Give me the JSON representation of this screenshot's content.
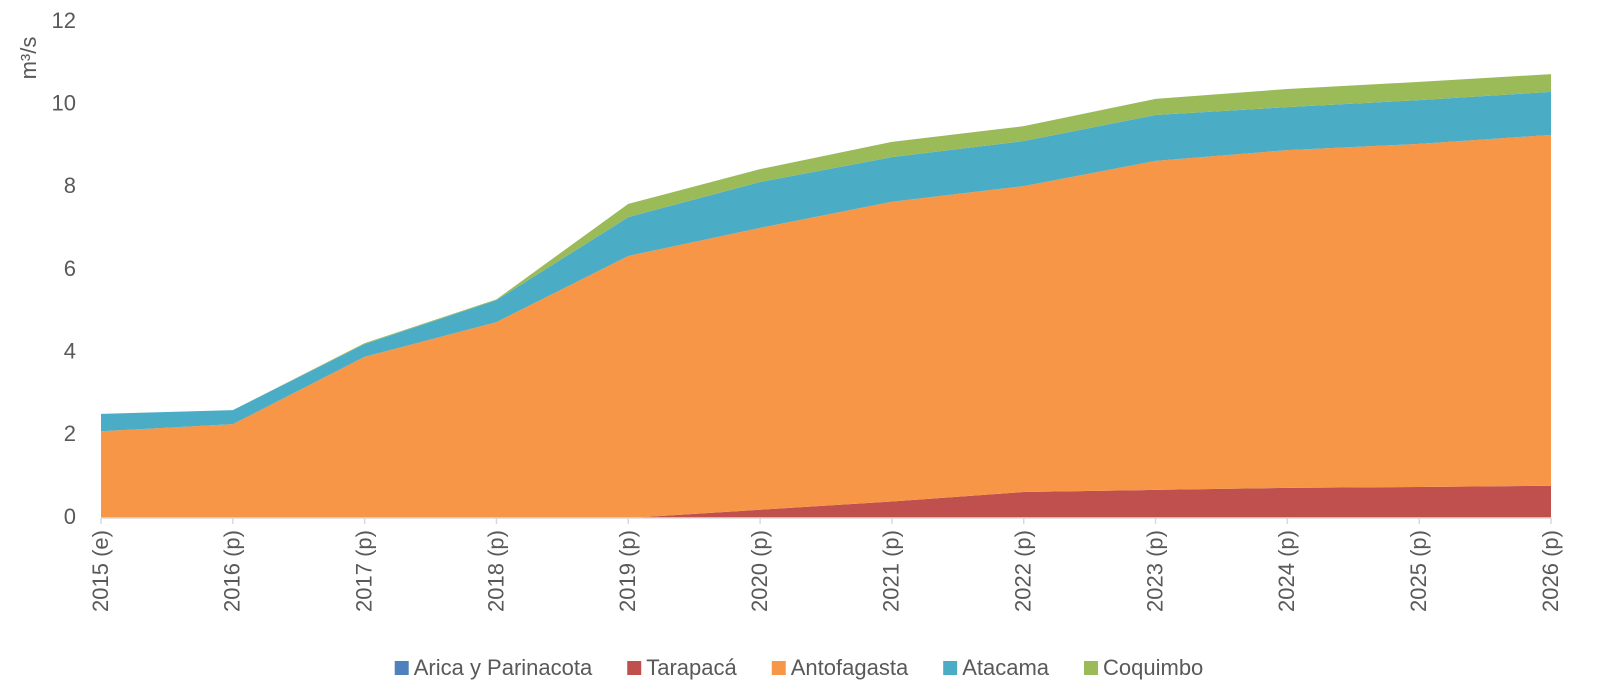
{
  "chart_data": {
    "type": "stacked_area",
    "y_label": "m³/s",
    "categories": [
      "2015 (e)",
      "2016 (p)",
      "2017 (p)",
      "2018 (p)",
      "2019 (p)",
      "2020 (p)",
      "2021 (p)",
      "2022 (p)",
      "2023 (p)",
      "2024 (p)",
      "2025 (p)",
      "2026 (p)"
    ],
    "series": [
      {
        "name": "Arica y Parinacota",
        "color": "#4f81bd",
        "values": [
          0,
          0,
          0,
          0,
          0,
          0,
          0,
          0,
          0,
          0,
          0,
          0
        ]
      },
      {
        "name": "Tarapacá",
        "color": "#c0504d",
        "values": [
          0,
          0,
          0,
          0,
          0,
          0.2,
          0.4,
          0.63,
          0.68,
          0.73,
          0.75,
          0.78
        ]
      },
      {
        "name": "Antofagasta",
        "color": "#f79646",
        "values": [
          2.1,
          2.27,
          3.9,
          4.74,
          6.34,
          6.82,
          7.25,
          7.4,
          7.96,
          8.17,
          8.3,
          8.49
        ]
      },
      {
        "name": "Atacama",
        "color": "#4bacc6",
        "values": [
          0.42,
          0.34,
          0.31,
          0.53,
          0.94,
          1.11,
          1.08,
          1.09,
          1.11,
          1.04,
          1.06,
          1.04
        ]
      },
      {
        "name": "Coquimbo",
        "color": "#9bbb59",
        "values": [
          0,
          0,
          0.02,
          0.02,
          0.32,
          0.31,
          0.37,
          0.36,
          0.39,
          0.44,
          0.44,
          0.43
        ]
      }
    ],
    "ylim": [
      0,
      12
    ],
    "yticks": [
      0,
      2,
      4,
      6,
      8,
      10,
      12
    ],
    "grid": false,
    "legend": "bottom"
  }
}
